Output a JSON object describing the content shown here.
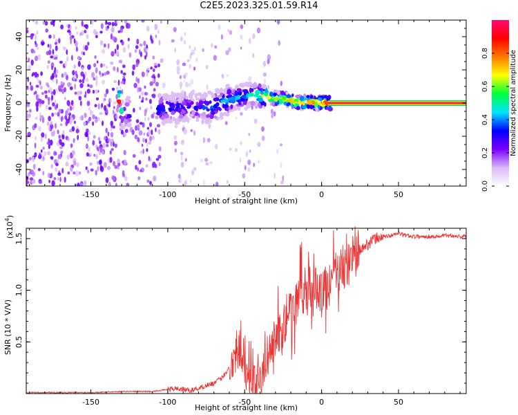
{
  "title": "C2E5.2023.325.01.59.R14",
  "chart_data": [
    {
      "type": "heatmap",
      "xlabel": "Height of straight line (km)",
      "ylabel": "Frequency (Hz)",
      "xlim": [
        -192,
        94
      ],
      "ylim": [
        -50,
        50
      ],
      "xticks": [
        -150,
        -100,
        -50,
        0,
        50
      ],
      "yticks": [
        -40,
        -20,
        0,
        20,
        40
      ],
      "grid": false,
      "colorbar": {
        "label": "Normalized spectral amplitude",
        "range": [
          0.0,
          1.0
        ],
        "ticks": [
          0.0,
          0.2,
          0.4,
          0.6,
          0.8
        ],
        "colors": [
          "#ffffff",
          "#d9b8f5",
          "#7a00ff",
          "#0000ff",
          "#00e5ff",
          "#00ff3a",
          "#ffff00",
          "#ff7a00",
          "#ff0000",
          "#ff0a70"
        ]
      },
      "dominant_line": {
        "x": [
          -130,
          -100,
          -85,
          -70,
          -60,
          -52,
          -45,
          -38,
          -30,
          -22,
          -14,
          -8,
          -4,
          0,
          5,
          94
        ],
        "y": [
          -6,
          -3,
          -3,
          -2,
          2,
          4,
          5,
          4,
          3,
          2,
          0,
          1,
          0,
          0,
          0,
          0
        ],
        "amplitude": [
          0.35,
          0.4,
          0.35,
          0.45,
          0.5,
          0.5,
          0.55,
          0.7,
          0.8,
          0.85,
          0.9,
          0.9,
          0.85,
          0.95,
          1.0,
          1.0
        ]
      }
    },
    {
      "type": "line",
      "xlabel": "Height of straight line (km)",
      "ylabel": "SNR (10 * V/V)",
      "y_scale_label": "(x10",
      "y_scale_exponent": "4",
      "ylim": [
        0,
        1.6
      ],
      "xlim": [
        -192,
        94
      ],
      "xticks": [
        -150,
        -100,
        -50,
        0,
        50
      ],
      "yticks": [
        0.5,
        1.0,
        1.5
      ],
      "ytick_labels": [
        "0.5",
        "1.0",
        "1.5"
      ],
      "grid": false,
      "series": [
        {
          "color": "#ee3333",
          "x": [
            -192,
            -170,
            -150,
            -130,
            -110,
            -100,
            -95,
            -90,
            -85,
            -80,
            -75,
            -70,
            -65,
            -60,
            -57,
            -55,
            -53,
            -51,
            -49,
            -47,
            -45,
            -42,
            -40,
            -38,
            -35,
            -32,
            -30,
            -28,
            -26,
            -24,
            -22,
            -20,
            -18,
            -16,
            -14,
            -12,
            -10,
            -8,
            -6,
            -4,
            -2,
            0,
            2,
            5,
            8,
            12,
            16,
            20,
            25,
            30,
            35,
            40,
            45,
            50,
            55,
            60,
            65,
            70,
            75,
            80,
            85,
            90,
            94
          ],
          "y": [
            0.01,
            0.01,
            0.01,
            0.02,
            0.02,
            0.04,
            0.05,
            0.04,
            0.03,
            0.05,
            0.08,
            0.1,
            0.15,
            0.25,
            0.35,
            0.5,
            0.45,
            0.35,
            0.2,
            0.15,
            0.12,
            0.1,
            0.15,
            0.2,
            0.4,
            0.45,
            0.55,
            0.6,
            0.5,
            0.7,
            0.8,
            0.75,
            0.85,
            0.9,
            1.0,
            0.95,
            0.9,
            1.1,
            0.95,
            1.0,
            1.05,
            0.95,
            1.0,
            1.05,
            1.15,
            1.2,
            1.25,
            1.3,
            1.38,
            1.45,
            1.5,
            1.52,
            1.53,
            1.55,
            1.53,
            1.52,
            1.52,
            1.52,
            1.52,
            1.53,
            1.53,
            1.52,
            1.52
          ]
        }
      ]
    }
  ]
}
